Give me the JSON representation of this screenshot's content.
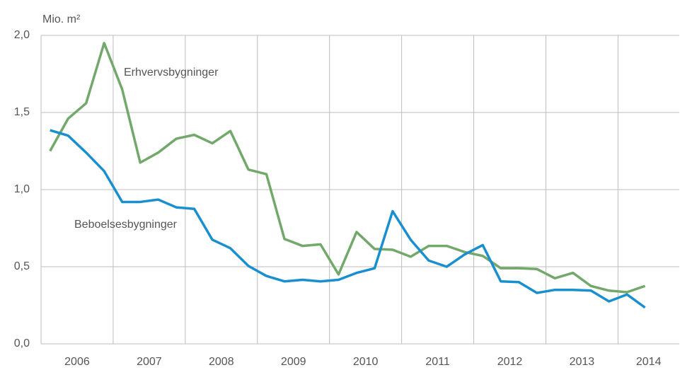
{
  "chart_data": {
    "type": "line",
    "ylabel": "Mio. m²",
    "x": [
      2006.125,
      2006.375,
      2006.625,
      2006.875,
      2007.125,
      2007.375,
      2007.625,
      2007.875,
      2008.125,
      2008.375,
      2008.625,
      2008.875,
      2009.125,
      2009.375,
      2009.625,
      2009.875,
      2010.125,
      2010.375,
      2010.625,
      2010.875,
      2011.125,
      2011.375,
      2011.625,
      2011.875,
      2012.125,
      2012.375,
      2012.625,
      2012.875,
      2013.125,
      2013.375,
      2013.625,
      2013.875,
      2014.125,
      2014.375
    ],
    "series": [
      {
        "name": "Erhvervsbygninger",
        "color": "#72a86a",
        "values": [
          1.25,
          1.46,
          1.56,
          1.95,
          1.65,
          1.175,
          1.24,
          1.33,
          1.355,
          1.3,
          1.38,
          1.13,
          1.1,
          0.68,
          0.635,
          0.645,
          0.45,
          0.725,
          0.615,
          0.61,
          0.565,
          0.635,
          0.635,
          0.595,
          0.57,
          0.49,
          0.49,
          0.485,
          0.425,
          0.46,
          0.375,
          0.345,
          0.335,
          0.375
        ]
      },
      {
        "name": "Beboelsesbygninger",
        "color": "#1a8fcf",
        "values": [
          1.385,
          1.35,
          1.24,
          1.12,
          0.92,
          0.92,
          0.935,
          0.885,
          0.875,
          0.675,
          0.62,
          0.505,
          0.44,
          0.405,
          0.415,
          0.405,
          0.415,
          0.46,
          0.49,
          0.86,
          0.675,
          0.54,
          0.5,
          0.58,
          0.64,
          0.405,
          0.4,
          0.33,
          0.35,
          0.35,
          0.345,
          0.275,
          0.32,
          0.235
        ]
      }
    ],
    "xlim": [
      2006,
      2014.85
    ],
    "xticks": [
      2006,
      2007,
      2008,
      2009,
      2010,
      2011,
      2012,
      2013,
      2014
    ],
    "ylim": [
      0,
      2
    ],
    "yticks": [
      {
        "value": 0,
        "label": "0,0"
      },
      {
        "value": 0.5,
        "label": "0,5"
      },
      {
        "value": 1,
        "label": "1,0"
      },
      {
        "value": 1.5,
        "label": "1,5"
      },
      {
        "value": 2,
        "label": "2,0"
      }
    ],
    "grid": true
  }
}
